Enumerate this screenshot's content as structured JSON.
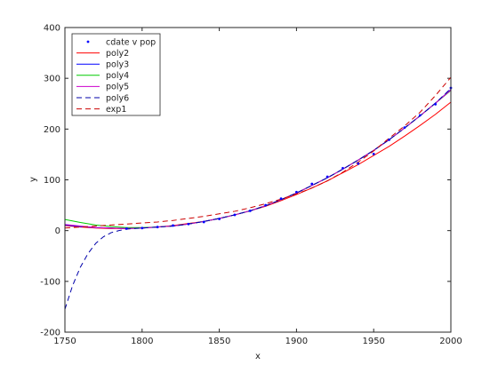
{
  "chart_data": {
    "type": "line",
    "title": "",
    "xlabel": "x",
    "ylabel": "y",
    "xlim": [
      1750,
      2000
    ],
    "ylim": [
      -200,
      400
    ],
    "xticks": [
      1750,
      1800,
      1850,
      1900,
      1950,
      2000
    ],
    "yticks": [
      -200,
      -100,
      0,
      100,
      200,
      300,
      400
    ],
    "grid": false,
    "legend_position": "top-left",
    "series": [
      {
        "name": "cdate v pop",
        "kind": "scatter",
        "color": "#0000ff",
        "x": [
          1790,
          1800,
          1810,
          1820,
          1830,
          1840,
          1850,
          1860,
          1870,
          1880,
          1890,
          1900,
          1910,
          1920,
          1930,
          1940,
          1950,
          1960,
          1970,
          1980,
          1990,
          2000
        ],
        "y": [
          4,
          5,
          7,
          10,
          13,
          17,
          23,
          31,
          39,
          50,
          63,
          76,
          92,
          106,
          123,
          132,
          151,
          179,
          203,
          227,
          249,
          281
        ]
      },
      {
        "name": "poly2",
        "kind": "line",
        "color": "#ff0000",
        "dash": "solid",
        "x": [
          1750,
          1760,
          1770,
          1780,
          1790,
          1800,
          1810,
          1820,
          1830,
          1840,
          1850,
          1860,
          1870,
          1880,
          1890,
          1900,
          1910,
          1920,
          1930,
          1940,
          1950,
          1960,
          1970,
          1980,
          1990,
          2000
        ],
        "y": [
          10,
          7,
          5,
          4,
          4,
          5,
          7,
          10,
          14,
          18,
          24,
          31,
          39,
          48,
          59,
          71,
          84,
          98,
          114,
          130,
          148,
          166,
          186,
          207,
          229,
          253
        ]
      },
      {
        "name": "poly3",
        "kind": "line",
        "color": "#0000ff",
        "dash": "solid",
        "x": [
          1750,
          1760,
          1770,
          1780,
          1790,
          1800,
          1810,
          1820,
          1830,
          1840,
          1850,
          1860,
          1870,
          1880,
          1890,
          1900,
          1910,
          1920,
          1930,
          1940,
          1950,
          1960,
          1970,
          1980,
          1990,
          2000
        ],
        "y": [
          11,
          8,
          6,
          5,
          4,
          5,
          7,
          9,
          13,
          18,
          24,
          31,
          39,
          49,
          61,
          74,
          89,
          104,
          121,
          139,
          158,
          179,
          202,
          226,
          251,
          278
        ]
      },
      {
        "name": "poly4",
        "kind": "line",
        "color": "#00cc00",
        "dash": "solid",
        "x": [
          1750,
          1760,
          1770,
          1780,
          1790,
          1800,
          1810,
          1820,
          1830,
          1840,
          1850,
          1860,
          1870,
          1880,
          1890,
          1900,
          1910,
          1920,
          1930,
          1940,
          1950,
          1960,
          1970,
          1980,
          1990,
          2000
        ],
        "y": [
          22,
          16,
          11,
          8,
          6,
          6,
          7,
          9,
          13,
          18,
          24,
          31,
          39,
          49,
          61,
          74,
          89,
          104,
          121,
          139,
          158,
          179,
          202,
          226,
          251,
          276
        ]
      },
      {
        "name": "poly5",
        "kind": "line",
        "color": "#cc00cc",
        "dash": "solid",
        "x": [
          1750,
          1760,
          1770,
          1780,
          1790,
          1800,
          1810,
          1820,
          1830,
          1840,
          1850,
          1860,
          1870,
          1880,
          1890,
          1900,
          1910,
          1920,
          1930,
          1940,
          1950,
          1960,
          1970,
          1980,
          1990,
          2000
        ],
        "y": [
          12,
          9,
          6,
          5,
          4,
          5,
          7,
          9,
          13,
          18,
          24,
          31,
          39,
          49,
          61,
          74,
          89,
          104,
          121,
          139,
          158,
          179,
          202,
          226,
          251,
          277
        ]
      },
      {
        "name": "poly6",
        "kind": "line",
        "color": "#0000aa",
        "dash": "dashed",
        "x": [
          1750,
          1755,
          1760,
          1765,
          1770,
          1775,
          1780,
          1785,
          1790,
          1795,
          1800,
          1810,
          1820,
          1830,
          1840,
          1850,
          1860,
          1870,
          1880,
          1890,
          1900,
          1910,
          1920,
          1930,
          1940,
          1950,
          1960,
          1970,
          1980,
          1990,
          2000
        ],
        "y": [
          -155,
          -108,
          -72,
          -45,
          -25,
          -12,
          -4,
          0,
          3,
          4,
          5,
          7,
          9,
          13,
          18,
          24,
          31,
          39,
          49,
          61,
          74,
          89,
          104,
          121,
          139,
          158,
          179,
          202,
          226,
          251,
          280
        ]
      },
      {
        "name": "exp1",
        "kind": "line",
        "color": "#cc0000",
        "dash": "dashed",
        "x": [
          1750,
          1760,
          1770,
          1780,
          1790,
          1800,
          1810,
          1820,
          1830,
          1840,
          1850,
          1860,
          1870,
          1880,
          1890,
          1900,
          1910,
          1920,
          1930,
          1940,
          1950,
          1960,
          1970,
          1980,
          1990,
          2000
        ],
        "y": [
          5,
          7,
          9,
          11,
          13,
          15,
          17,
          20,
          24,
          28,
          33,
          38,
          45,
          53,
          62,
          72,
          84,
          98,
          115,
          135,
          157,
          182,
          206,
          233,
          266,
          302
        ]
      }
    ]
  }
}
